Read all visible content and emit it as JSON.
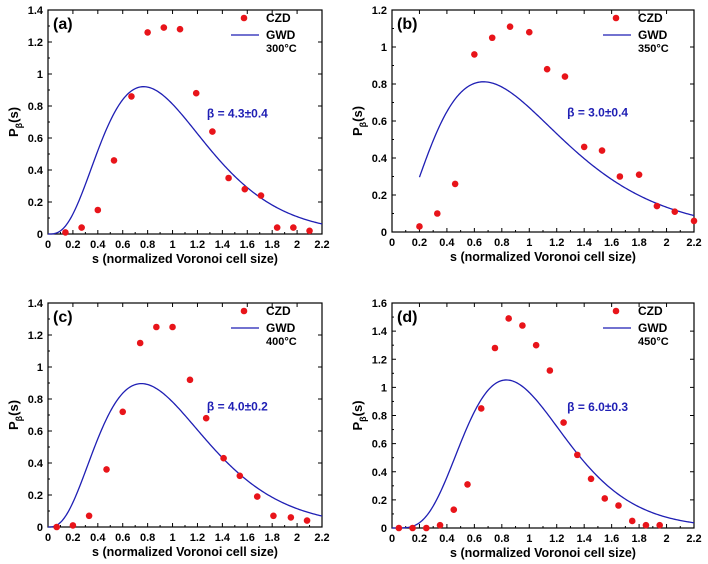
{
  "chart_data": [
    {
      "type": "scatter",
      "panel_label": "(a)",
      "temperature": "300°C",
      "beta_text": "β = 4.3±0.4",
      "xlabel": "s (normalized Voronoi cell size)",
      "ylabel": "Pβ(s)",
      "ylabel_main": "P",
      "ylabel_sub": "β",
      "ylabel_tail": "(s)",
      "xlim": [
        0,
        2.2
      ],
      "ylim": [
        0,
        1.4
      ],
      "xticks": [
        "0",
        "0.2",
        "0.4",
        "0.6",
        "0.8",
        "1",
        "1.2",
        "1.4",
        "1.6",
        "1.8",
        "2",
        "2.2"
      ],
      "yticks": [
        "0",
        "0.2",
        "0.4",
        "0.6",
        "0.8",
        "1",
        "1.2",
        "1.4"
      ],
      "legend": [
        "CZD",
        "GWD"
      ],
      "series": [
        {
          "name": "CZD",
          "style": "markers",
          "color": "#e8141a",
          "x": [
            0.14,
            0.27,
            0.4,
            0.53,
            0.67,
            0.8,
            0.93,
            1.06,
            1.19,
            1.32,
            1.45,
            1.58,
            1.71,
            1.84,
            1.97,
            2.1
          ],
          "y": [
            0.01,
            0.04,
            0.15,
            0.46,
            0.86,
            1.26,
            1.29,
            1.28,
            0.88,
            0.64,
            0.35,
            0.28,
            0.24,
            0.04,
            0.04,
            0.02
          ]
        },
        {
          "name": "GWD",
          "style": "line",
          "color": "#1f1fb4",
          "beta": 4.3,
          "x_start": 0.0,
          "x_end": 2.2
        }
      ]
    },
    {
      "type": "scatter",
      "panel_label": "(b)",
      "temperature": "350°C",
      "beta_text": "β = 3.0±0.4",
      "xlabel": "s (normalized Voronoi cell size)",
      "ylabel": "Pβ(s)",
      "ylabel_main": "P",
      "ylabel_sub": "β",
      "ylabel_tail": "(s)",
      "xlim": [
        0,
        2.2
      ],
      "ylim": [
        0,
        1.2
      ],
      "xticks": [
        "0",
        "0.2",
        "0.4",
        "0.6",
        "0.8",
        "1",
        "1.2",
        "1.4",
        "1.6",
        "1.8",
        "2",
        "2.2"
      ],
      "yticks": [
        "0",
        "0.2",
        "0.4",
        "0.6",
        "0.8",
        "1",
        "1.2"
      ],
      "legend": [
        "CZD",
        "GWD"
      ],
      "series": [
        {
          "name": "CZD",
          "style": "markers",
          "color": "#e8141a",
          "x": [
            0.2,
            0.33,
            0.46,
            0.6,
            0.73,
            0.86,
            1.0,
            1.13,
            1.26,
            1.4,
            1.53,
            1.66,
            1.8,
            1.93,
            2.06,
            2.2
          ],
          "y": [
            0.03,
            0.1,
            0.26,
            0.96,
            1.05,
            1.11,
            1.08,
            0.88,
            0.84,
            0.46,
            0.44,
            0.3,
            0.31,
            0.14,
            0.11,
            0.06
          ]
        },
        {
          "name": "GWD",
          "style": "line",
          "color": "#1f1fb4",
          "beta": 3.0,
          "x_start": 0.2,
          "x_end": 2.2
        }
      ]
    },
    {
      "type": "scatter",
      "panel_label": "(c)",
      "temperature": "400°C",
      "beta_text": "β = 4.0±0.2",
      "xlabel": "s (normalized Voronoi cell size)",
      "ylabel": "Pβ(s)",
      "ylabel_main": "P",
      "ylabel_sub": "β",
      "ylabel_tail": "(s)",
      "xlim": [
        0,
        2.2
      ],
      "ylim": [
        0,
        1.4
      ],
      "xticks": [
        "0",
        "0.2",
        "0.4",
        "0.6",
        "0.8",
        "1",
        "1.2",
        "1.4",
        "1.6",
        "1.8",
        "2",
        "2.2"
      ],
      "yticks": [
        "0",
        "0.2",
        "0.4",
        "0.6",
        "0.8",
        "1",
        "1.2",
        "1.4"
      ],
      "legend": [
        "CZD",
        "GWD"
      ],
      "series": [
        {
          "name": "CZD",
          "style": "markers",
          "color": "#e8141a",
          "x": [
            0.07,
            0.2,
            0.33,
            0.47,
            0.6,
            0.74,
            0.87,
            1.0,
            1.14,
            1.27,
            1.41,
            1.54,
            1.68,
            1.81,
            1.95,
            2.08
          ],
          "y": [
            0.0,
            0.01,
            0.07,
            0.36,
            0.72,
            1.15,
            1.25,
            1.25,
            0.92,
            0.68,
            0.43,
            0.32,
            0.19,
            0.07,
            0.06,
            0.04
          ]
        },
        {
          "name": "GWD",
          "style": "line",
          "color": "#1f1fb4",
          "beta": 4.0,
          "x_start": 0.0,
          "x_end": 2.2
        }
      ]
    },
    {
      "type": "scatter",
      "panel_label": "(d)",
      "temperature": "450°C",
      "beta_text": "β = 6.0±0.3",
      "xlabel": "s (normalized Voronoi cell size)",
      "ylabel": "Pβ(s)",
      "ylabel_main": "P",
      "ylabel_sub": "β",
      "ylabel_tail": "(s)",
      "xlim": [
        0,
        2.2
      ],
      "ylim": [
        0,
        1.6
      ],
      "xticks": [
        "0",
        "0.2",
        "0.4",
        "0.6",
        "0.8",
        "1",
        "1.2",
        "1.4",
        "1.6",
        "1.8",
        "2",
        "2.2"
      ],
      "yticks": [
        "0",
        "0.2",
        "0.4",
        "0.6",
        "0.8",
        "1",
        "1.2",
        "1.4",
        "1.6"
      ],
      "legend": [
        "CZD",
        "GWD"
      ],
      "series": [
        {
          "name": "CZD",
          "style": "markers",
          "color": "#e8141a",
          "x": [
            0.05,
            0.15,
            0.25,
            0.35,
            0.45,
            0.55,
            0.65,
            0.75,
            0.85,
            0.95,
            1.05,
            1.15,
            1.25,
            1.35,
            1.45,
            1.55,
            1.65,
            1.75,
            1.85,
            1.95
          ],
          "y": [
            0.0,
            0.0,
            0.0,
            0.02,
            0.13,
            0.31,
            0.85,
            1.28,
            1.49,
            1.44,
            1.3,
            1.12,
            0.75,
            0.52,
            0.35,
            0.21,
            0.16,
            0.05,
            0.02,
            0.02
          ]
        },
        {
          "name": "GWD",
          "style": "line",
          "color": "#1f1fb4",
          "beta": 6.0,
          "x_start": 0.0,
          "x_end": 2.2
        }
      ]
    }
  ]
}
